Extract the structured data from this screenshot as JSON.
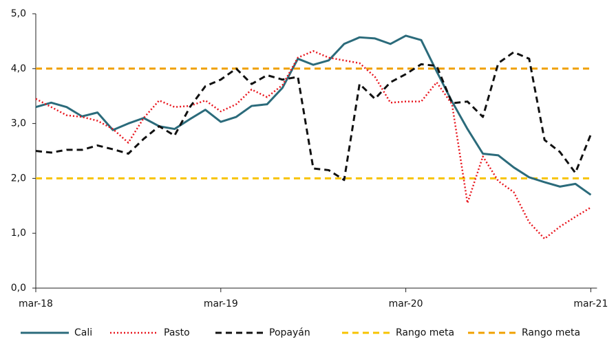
{
  "chart_data": {
    "type": "line",
    "categories": [
      "mar-18",
      null,
      null,
      null,
      null,
      null,
      null,
      null,
      null,
      null,
      null,
      null,
      "mar-19",
      null,
      null,
      null,
      null,
      null,
      null,
      null,
      null,
      null,
      null,
      null,
      "mar-20",
      null,
      null,
      null,
      null,
      null,
      null,
      null,
      null,
      null,
      null,
      null,
      "mar-21"
    ],
    "ylim": [
      0,
      5
    ],
    "yticks": [
      {
        "value": 0,
        "label": "0,0"
      },
      {
        "value": 1,
        "label": "1,0"
      },
      {
        "value": 2,
        "label": "2,0"
      },
      {
        "value": 3,
        "label": "3,0"
      },
      {
        "value": 4,
        "label": "4,0"
      },
      {
        "value": 5,
        "label": "5,0"
      }
    ],
    "grid": false,
    "legend": "bottom",
    "series": [
      {
        "name": "Cali",
        "color": "#2b6b7b",
        "style": "solid",
        "values": [
          3.3,
          3.38,
          3.3,
          3.13,
          3.2,
          2.88,
          3.0,
          3.1,
          2.95,
          2.9,
          3.08,
          3.25,
          3.03,
          3.12,
          3.32,
          3.35,
          3.65,
          4.18,
          4.07,
          4.15,
          4.45,
          4.57,
          4.55,
          4.45,
          4.6,
          4.52,
          3.95,
          3.4,
          2.9,
          2.45,
          2.42,
          2.2,
          2.02,
          1.93,
          1.85,
          1.9,
          1.7
        ]
      },
      {
        "name": "Pasto",
        "color": "#e8141c",
        "style": "dotted",
        "values": [
          3.45,
          3.3,
          3.15,
          3.12,
          3.05,
          2.9,
          2.65,
          3.1,
          3.42,
          3.3,
          3.32,
          3.42,
          3.22,
          3.35,
          3.62,
          3.48,
          3.7,
          4.2,
          4.32,
          4.2,
          4.15,
          4.1,
          3.85,
          3.38,
          3.4,
          3.4,
          3.75,
          3.35,
          1.55,
          2.4,
          1.95,
          1.75,
          1.2,
          0.9,
          1.12,
          1.3,
          1.47
        ]
      },
      {
        "name": "Popayán",
        "color": "#111111",
        "style": "dashed",
        "values": [
          2.5,
          2.47,
          2.52,
          2.52,
          2.6,
          2.53,
          2.45,
          2.72,
          2.95,
          2.78,
          3.3,
          3.68,
          3.8,
          4.0,
          3.72,
          3.88,
          3.8,
          3.85,
          2.18,
          2.15,
          1.97,
          3.72,
          3.45,
          3.75,
          3.9,
          4.08,
          4.05,
          3.37,
          3.4,
          3.12,
          4.1,
          4.3,
          4.18,
          2.7,
          2.48,
          2.1,
          2.8
        ]
      },
      {
        "name": "Rango meta",
        "color": "#f7c300",
        "style": "dashed",
        "values": [
          2,
          2,
          2,
          2,
          2,
          2,
          2,
          2,
          2,
          2,
          2,
          2,
          2,
          2,
          2,
          2,
          2,
          2,
          2,
          2,
          2,
          2,
          2,
          2,
          2,
          2,
          2,
          2,
          2,
          2,
          2,
          2,
          2,
          2,
          2,
          2,
          2
        ]
      },
      {
        "name": "Rango meta",
        "color": "#f0a000",
        "style": "dashed",
        "values": [
          4,
          4,
          4,
          4,
          4,
          4,
          4,
          4,
          4,
          4,
          4,
          4,
          4,
          4,
          4,
          4,
          4,
          4,
          4,
          4,
          4,
          4,
          4,
          4,
          4,
          4,
          4,
          4,
          4,
          4,
          4,
          4,
          4,
          4,
          4,
          4,
          4
        ]
      }
    ]
  }
}
